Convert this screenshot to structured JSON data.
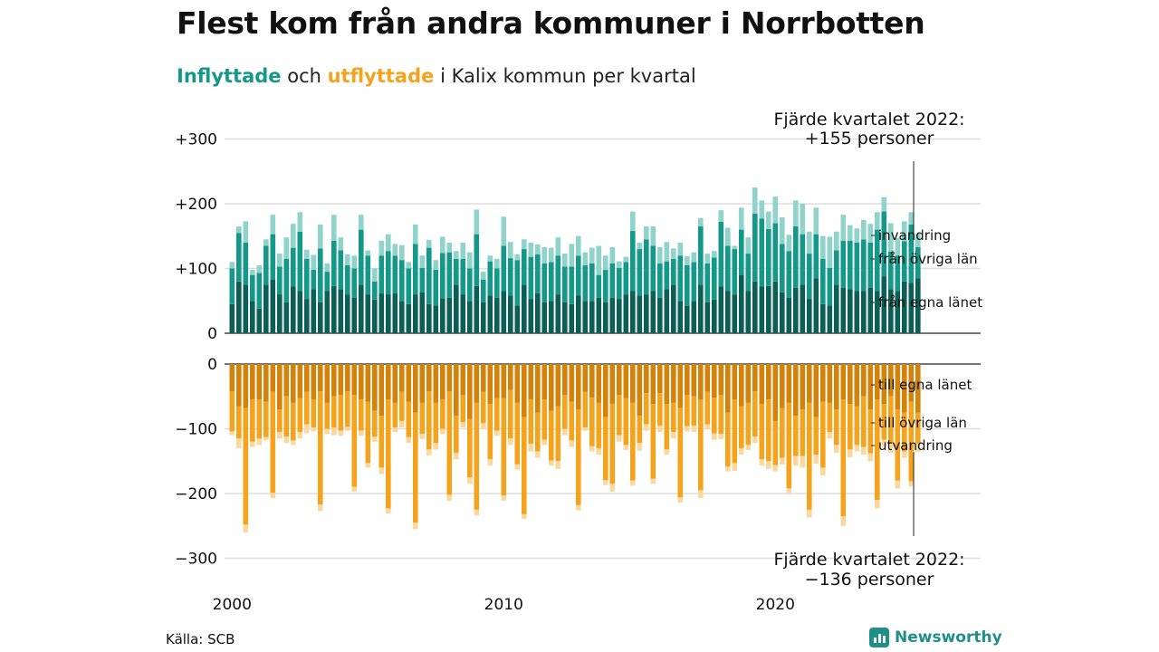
{
  "title": "Flest kom från andra kommuner i Norrbotten",
  "subtitle": {
    "word_in": "Inflyttade",
    "between": " och ",
    "word_out": "utflyttade",
    "rest": " i Kalix kommun per kvartal"
  },
  "source": "Källa: SCB",
  "brand": {
    "name": "Newsworthy",
    "icon": "bar-chart-icon"
  },
  "colors": {
    "in_local": "#0c5f56",
    "in_county": "#14988a",
    "in_intl": "#8fd3ca",
    "out_local": "#d4820a",
    "out_county": "#f5a31c",
    "out_intl": "#fad8a0",
    "grid": "#dddddd"
  },
  "chart_data": {
    "type": "bar",
    "stacked": true,
    "x_start": "2000 Q1",
    "x_tick_labels": [
      "2000",
      "2010",
      "2020"
    ],
    "top_panel": {
      "y_ticks": [
        "+300",
        "+200",
        "+100",
        "0"
      ],
      "ylim": [
        0,
        300
      ],
      "series_labels": [
        "invandring",
        "från övriga län",
        "från egna länet"
      ],
      "annotation": {
        "line1": "Fjärde kvartalet 2022:",
        "line2": "+155 personer"
      },
      "series": [
        {
          "name": "från egna länet",
          "values": [
            45,
            80,
            75,
            50,
            38,
            75,
            83,
            60,
            48,
            72,
            65,
            53,
            68,
            48,
            65,
            73,
            68,
            60,
            55,
            75,
            60,
            52,
            62,
            60,
            62,
            50,
            45,
            60,
            63,
            45,
            43,
            54,
            55,
            75,
            60,
            50,
            73,
            48,
            58,
            55,
            65,
            58,
            43,
            75,
            53,
            62,
            48,
            50,
            60,
            48,
            45,
            58,
            50,
            50,
            55,
            48,
            55,
            53,
            60,
            65,
            58,
            60,
            65,
            55,
            68,
            75,
            50,
            42,
            50,
            75,
            48,
            52,
            72,
            65,
            60,
            90,
            65,
            80,
            72,
            73,
            80,
            63,
            55,
            70,
            75,
            53,
            85,
            45,
            43,
            75,
            70,
            68,
            65,
            65,
            70,
            65,
            88,
            68,
            65,
            80,
            78,
            85
          ]
        },
        {
          "name": "från övriga län",
          "values": [
            55,
            75,
            65,
            40,
            55,
            60,
            70,
            43,
            67,
            60,
            92,
            62,
            30,
            83,
            30,
            70,
            60,
            45,
            45,
            85,
            60,
            28,
            58,
            67,
            58,
            63,
            55,
            78,
            38,
            87,
            55,
            70,
            70,
            40,
            55,
            50,
            80,
            35,
            53,
            45,
            70,
            58,
            70,
            55,
            65,
            60,
            60,
            60,
            60,
            55,
            58,
            62,
            55,
            58,
            35,
            50,
            53,
            48,
            50,
            93,
            72,
            85,
            70,
            53,
            43,
            40,
            70,
            63,
            60,
            90,
            60,
            65,
            100,
            70,
            70,
            70,
            58,
            105,
            105,
            88,
            90,
            75,
            72,
            95,
            78,
            70,
            68,
            70,
            58,
            53,
            73,
            75,
            75,
            80,
            70,
            95,
            100,
            58,
            55,
            62,
            90,
            48
          ]
        },
        {
          "name": "invandring",
          "values": [
            10,
            10,
            33,
            8,
            12,
            10,
            30,
            20,
            33,
            37,
            30,
            14,
            23,
            37,
            13,
            40,
            20,
            17,
            20,
            23,
            8,
            20,
            23,
            26,
            18,
            23,
            10,
            30,
            19,
            12,
            15,
            25,
            15,
            12,
            25,
            25,
            38,
            12,
            9,
            15,
            45,
            25,
            9,
            15,
            22,
            15,
            25,
            22,
            28,
            20,
            35,
            30,
            20,
            24,
            45,
            22,
            25,
            10,
            8,
            30,
            10,
            20,
            30,
            25,
            30,
            16,
            20,
            14,
            15,
            13,
            15,
            10,
            18,
            28,
            5,
            34,
            25,
            40,
            28,
            27,
            41,
            41,
            25,
            40,
            47,
            34,
            41,
            35,
            48,
            29,
            40,
            24,
            22,
            30,
            29,
            27,
            22,
            44,
            27,
            31,
            19,
            21
          ]
        }
      ]
    },
    "bottom_panel": {
      "y_ticks": [
        "0",
        "−100",
        "−200",
        "−300"
      ],
      "ylim": [
        -300,
        0
      ],
      "series_labels": [
        "till egna länet",
        "till övriga län",
        "utvandring"
      ],
      "annotation": {
        "line1": "Fjärde kvartalet 2022:",
        "line2": "−136 personer"
      },
      "series": [
        {
          "name": "till egna länet",
          "values": [
            -42,
            -65,
            -68,
            -55,
            -55,
            -58,
            -43,
            -70,
            -50,
            -60,
            -53,
            -43,
            -55,
            -42,
            -60,
            -50,
            -48,
            -42,
            -48,
            -55,
            -58,
            -72,
            -80,
            -55,
            -60,
            -43,
            -58,
            -75,
            -60,
            -42,
            -60,
            -55,
            -42,
            -80,
            -48,
            -85,
            -60,
            -43,
            -62,
            -53,
            -53,
            -40,
            -60,
            -82,
            -55,
            -75,
            -55,
            -72,
            -65,
            -48,
            -58,
            -70,
            -43,
            -52,
            -60,
            -82,
            -62,
            -48,
            -53,
            -60,
            -80,
            -45,
            -62,
            -45,
            -62,
            -60,
            -68,
            -48,
            -50,
            -55,
            -43,
            -52,
            -48,
            -75,
            -55,
            -65,
            -60,
            -42,
            -62,
            -55,
            -88,
            -68,
            -60,
            -80,
            -70,
            -60,
            -82,
            -58,
            -60,
            -70,
            -55,
            -62,
            -65,
            -50,
            -70,
            -55,
            -62,
            -50,
            -70,
            -75,
            -58,
            -75
          ]
        },
        {
          "name": "till övriga län",
          "values": [
            -62,
            -50,
            -180,
            -65,
            -60,
            -55,
            -156,
            -35,
            -62,
            -58,
            -52,
            -50,
            -43,
            -175,
            -40,
            -48,
            -55,
            -55,
            -142,
            -48,
            -95,
            -40,
            -80,
            -168,
            -38,
            -45,
            -55,
            -170,
            -48,
            -90,
            -62,
            -45,
            -160,
            -57,
            -42,
            -90,
            -165,
            -48,
            -85,
            -50,
            -150,
            -75,
            -95,
            -150,
            -68,
            -60,
            -62,
            -77,
            -85,
            -52,
            -60,
            -148,
            -55,
            -75,
            -70,
            -97,
            -123,
            -62,
            -72,
            -120,
            -42,
            -48,
            -115,
            -50,
            -70,
            -45,
            -138,
            -48,
            -45,
            -140,
            -50,
            -55,
            -60,
            -83,
            -98,
            -65,
            -65,
            -70,
            -85,
            -95,
            -68,
            -77,
            -132,
            -62,
            -72,
            -165,
            -58,
            -102,
            -45,
            -55,
            -180,
            -70,
            -60,
            -78,
            -68,
            -155,
            -55,
            -73,
            -110,
            -60,
            -123,
            -48
          ]
        },
        {
          "name": "utvandring",
          "values": [
            -6,
            -15,
            -12,
            -8,
            -10,
            -5,
            -8,
            -10,
            -10,
            -7,
            -10,
            -14,
            -6,
            -10,
            -8,
            -12,
            -8,
            -6,
            -7,
            -8,
            -7,
            -8,
            -10,
            -8,
            -7,
            -10,
            -9,
            -10,
            -8,
            -9,
            -10,
            -8,
            -9,
            -10,
            -8,
            -10,
            -9,
            -9,
            -10,
            -8,
            -8,
            -10,
            -8,
            -7,
            -12,
            -10,
            -8,
            -8,
            -12,
            -10,
            -10,
            -8,
            -5,
            -8,
            -10,
            -8,
            -12,
            -10,
            -8,
            -8,
            -12,
            -10,
            -8,
            -10,
            -8,
            -10,
            -8,
            -8,
            -10,
            -12,
            -8,
            -10,
            -8,
            -8,
            -12,
            -10,
            -8,
            -10,
            -10,
            -12,
            -10,
            -10,
            -8,
            -15,
            -18,
            -12,
            -14,
            -12,
            -10,
            -12,
            -15,
            -12,
            -10,
            -12,
            -12,
            -13,
            -10,
            -14,
            -12,
            -10,
            -8,
            -13
          ]
        }
      ]
    }
  }
}
